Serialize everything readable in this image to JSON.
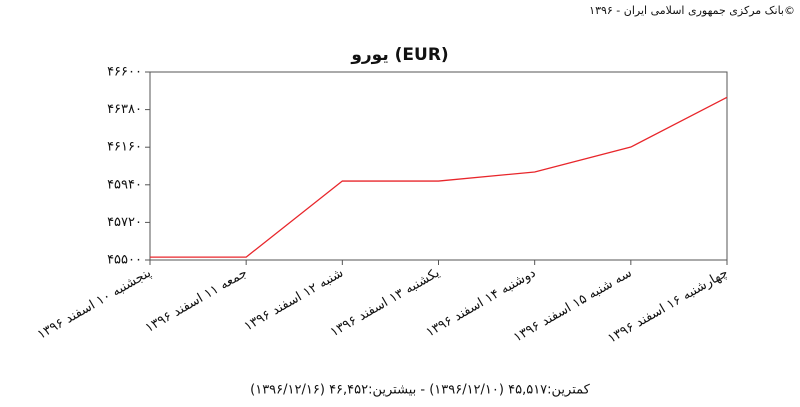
{
  "chart_data": {
    "type": "line",
    "source": "بانک مرکزی جمهوری اسلامی ایران - ۱۳۹۶©",
    "title": "یورو (EUR)",
    "categories": [
      "پنجشنبه ۱۰ اسفند ۱۳۹۶",
      "جمعه ۱۱ اسفند ۱۳۹۶",
      "شنبه ۱۲ اسفند ۱۳۹۶",
      "یکشنبه ۱۳ اسفند ۱۳۹۶",
      "دوشنبه ۱۴ اسفند ۱۳۹۶",
      "سه شنبه ۱۵ اسفند ۱۳۹۶",
      "چهارشنبه ۱۶ اسفند ۱۳۹۶"
    ],
    "values": [
      45517,
      45517,
      45962,
      45962,
      46015,
      46161,
      46452
    ],
    "color": "#e8262b",
    "ylim": [
      45500,
      46600
    ],
    "yticks": [
      {
        "value": 45500,
        "label": "۴۵۵۰۰"
      },
      {
        "value": 45720,
        "label": "۴۵۷۲۰"
      },
      {
        "value": 45940,
        "label": "۴۵۹۴۰"
      },
      {
        "value": 46160,
        "label": "۴۶۱۶۰"
      },
      {
        "value": 46380,
        "label": "۴۶۳۸۰"
      },
      {
        "value": 46600,
        "label": "۴۶۶۰۰"
      }
    ],
    "summary": "کمترین:۴۵,۵۱۷ (۱۳۹۶/۱۲/۱۰) - بیشترین:۴۶,۴۵۲ (۱۳۹۶/۱۲/۱۶)"
  }
}
